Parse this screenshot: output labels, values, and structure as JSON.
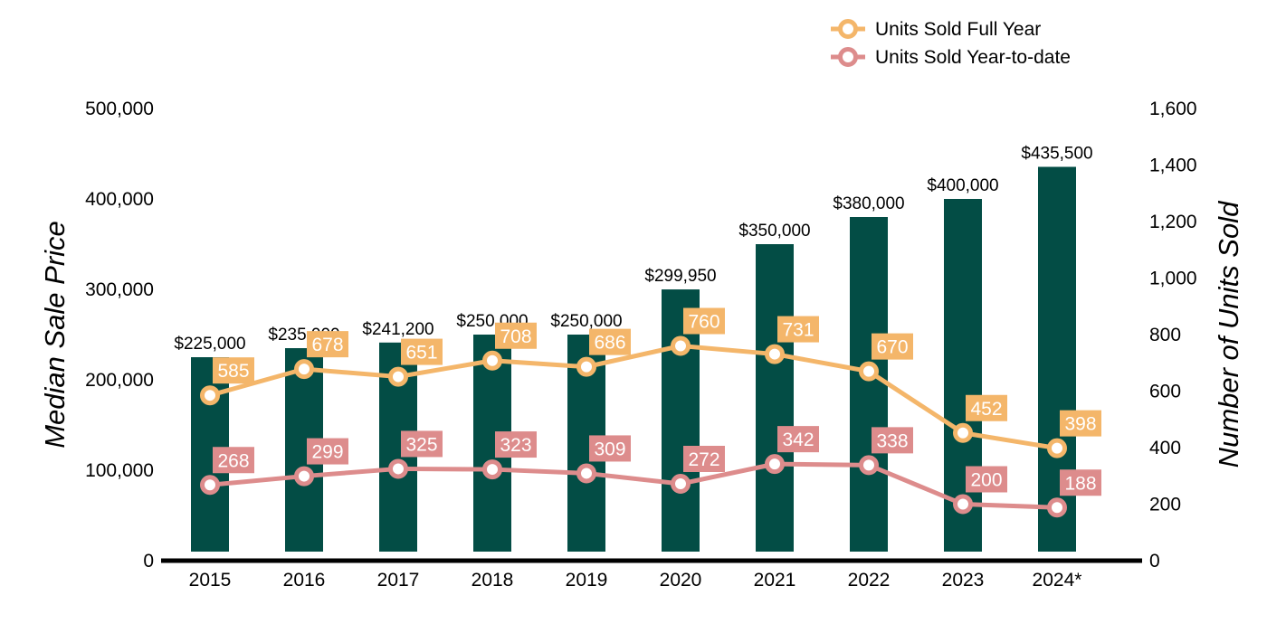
{
  "chart_data": {
    "type": "bar",
    "categories": [
      "2015",
      "2016",
      "2017",
      "2018",
      "2019",
      "2020",
      "2021",
      "2022",
      "2023",
      "2024*"
    ],
    "bar_series": {
      "values": [
        225000,
        235000,
        241200,
        250000,
        250000,
        299950,
        350000,
        380000,
        400000,
        435500
      ],
      "labels": [
        "$225,000",
        "$235,000",
        "$241,200",
        "$250,000",
        "$250,000",
        "$299,950",
        "$350,000",
        "$380,000",
        "$400,000",
        "$435,500"
      ],
      "color": "#034d45"
    },
    "line_series": [
      {
        "name": "Units Sold Full Year",
        "values": [
          585,
          678,
          651,
          708,
          686,
          760,
          731,
          670,
          452,
          398
        ],
        "color": "#f4b66a"
      },
      {
        "name": "Units Sold Year-to-date",
        "values": [
          268,
          299,
          325,
          323,
          309,
          272,
          342,
          338,
          200,
          188
        ],
        "color": "#dd8c8c"
      }
    ],
    "ylabel": "Median Sale Price",
    "y2label": "Number of Units Sold",
    "ylim": [
      0,
      500000
    ],
    "y2lim": [
      0,
      1600
    ],
    "y_ticks": [
      "0",
      "100,000",
      "200,000",
      "300,000",
      "400,000",
      "500,000"
    ],
    "y2_ticks": [
      "0",
      "200",
      "400",
      "600",
      "800",
      "1,000",
      "1,200",
      "1,400",
      "1,600"
    ],
    "grid": false,
    "legend_position": "top-right"
  }
}
